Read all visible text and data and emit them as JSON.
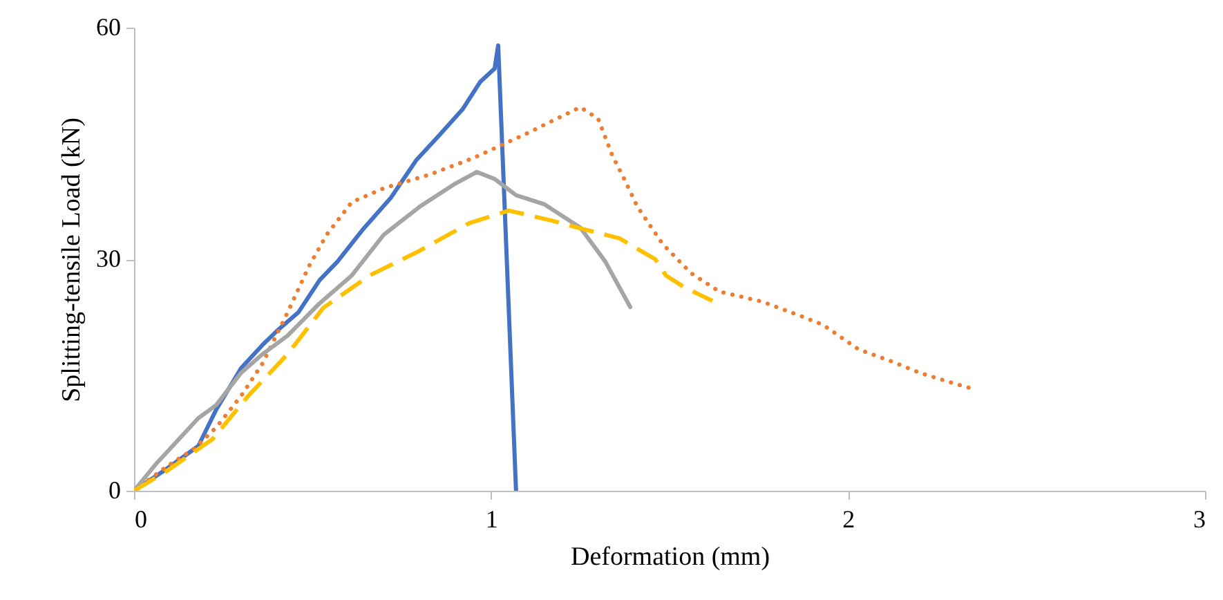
{
  "chart_data": {
    "type": "line",
    "xlabel": "Deformation (mm)",
    "ylabel": "Splitting-tensile Load (kN)",
    "xlim": [
      0,
      3
    ],
    "xticks": [
      0,
      1,
      2,
      3
    ],
    "ylim": [
      0,
      60
    ],
    "yticks": [
      0,
      30,
      60
    ],
    "grid": false,
    "marker": "none",
    "series": [
      {
        "color": "#4472c4",
        "line_style": "solid",
        "x": [
          0,
          0.09,
          0.18,
          0.23,
          0.3,
          0.36,
          0.4,
          0.46,
          0.52,
          0.57,
          0.64,
          0.72,
          0.79,
          0.85,
          0.92,
          0.97,
          1.01,
          1.02,
          1.07
        ],
        "values": [
          0,
          2.8,
          5.8,
          10.5,
          15.9,
          18.9,
          20.7,
          23.1,
          27.3,
          29.7,
          33.8,
          38,
          42.8,
          45.8,
          49.4,
          53,
          54.7,
          57.7,
          0
        ]
      },
      {
        "color": "#ed7d31",
        "line_style": "dotted",
        "x": [
          0,
          0.09,
          0.17,
          0.23,
          0.3,
          0.36,
          0.43,
          0.49,
          0.54,
          0.61,
          0.7,
          0.83,
          0.95,
          1.11,
          1.14,
          1.25,
          1.3,
          1.34,
          1.37,
          1.41,
          1.48,
          1.56,
          1.64,
          1.76,
          1.87,
          1.93,
          1.98,
          2.03,
          2.12,
          2.2,
          2.29,
          2.35
        ],
        "values": [
          0,
          3.1,
          5.5,
          8.2,
          12.3,
          16.5,
          23.1,
          29.1,
          33.2,
          37.4,
          39.2,
          41,
          43.1,
          46.5,
          47.2,
          49.7,
          48.2,
          43.4,
          40.7,
          36.8,
          32,
          28.2,
          25.8,
          24.5,
          22.6,
          21.5,
          19.9,
          18.3,
          16.8,
          15.3,
          14,
          13.2
        ]
      },
      {
        "color": "#a5a5a5",
        "line_style": "solid",
        "x": [
          0,
          0.06,
          0.12,
          0.18,
          0.23,
          0.3,
          0.36,
          0.43,
          0.52,
          0.61,
          0.7,
          0.8,
          0.9,
          0.96,
          1.01,
          1.07,
          1.15,
          1.25,
          1.32,
          1.39
        ],
        "values": [
          0,
          3.4,
          6.4,
          9.4,
          11.1,
          15.3,
          17.7,
          20.1,
          24.3,
          27.9,
          33.2,
          36.8,
          39.8,
          41.3,
          40.4,
          38.3,
          37.1,
          34.1,
          29.7,
          23.8
        ]
      },
      {
        "color": "#ffc000",
        "line_style": "dashed",
        "x": [
          0,
          0.09,
          0.22,
          0.32,
          0.43,
          0.53,
          0.66,
          0.8,
          0.94,
          1.05,
          1.17,
          1.25,
          1.36,
          1.46,
          1.49,
          1.54,
          1.62
        ],
        "values": [
          0,
          2.5,
          6.7,
          12.3,
          17.7,
          23.7,
          27.9,
          31.1,
          34.7,
          36.3,
          35,
          34,
          32.7,
          30,
          27.9,
          26.4,
          24.6
        ]
      }
    ]
  }
}
